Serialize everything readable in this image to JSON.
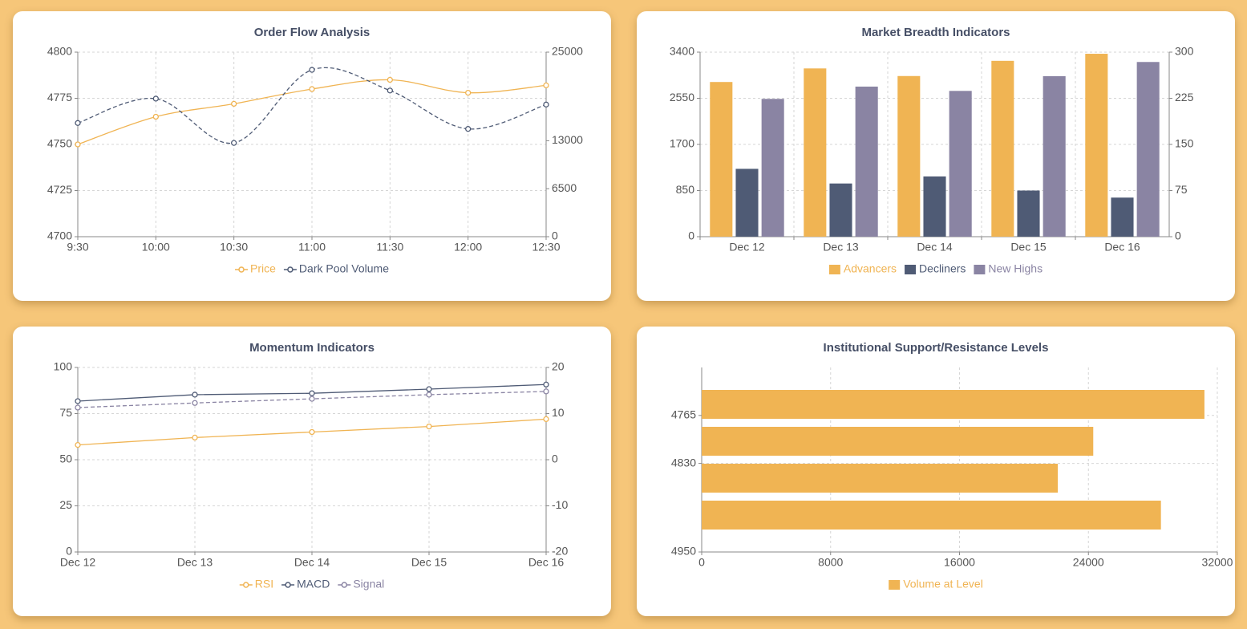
{
  "chart_data": [
    {
      "type": "line",
      "title": "Order Flow Analysis",
      "categories": [
        "9:30",
        "10:00",
        "10:30",
        "11:00",
        "11:30",
        "12:00",
        "12:30"
      ],
      "series": [
        {
          "name": "Price",
          "color": "#f0b453",
          "values": [
            4750,
            4765,
            4772,
            4780,
            4785,
            4778,
            4782
          ],
          "smooth": true
        },
        {
          "name": "Dark Pool Volume",
          "color": "#4f5b75",
          "values": [
            15400,
            18700,
            12700,
            22600,
            19800,
            14600,
            17900
          ],
          "axis": "y2",
          "smooth": true,
          "dashed": true
        }
      ],
      "ylim": [
        4700,
        4800
      ],
      "yticks": [
        4700,
        4725,
        4750,
        4775,
        4800
      ],
      "y2lim": [
        0,
        25000
      ],
      "y2ticks": [
        0,
        6500,
        13000,
        25000
      ],
      "grid": true,
      "legend": "bottom"
    },
    {
      "type": "bar",
      "title": "Market Breadth Indicators",
      "categories": [
        "Dec 12",
        "Dec 13",
        "Dec 14",
        "Dec 15",
        "Dec 16"
      ],
      "series": [
        {
          "name": "Advancers",
          "color": "#f0b453",
          "values": [
            2850,
            3100,
            2960,
            3240,
            3370
          ]
        },
        {
          "name": "Decliners",
          "color": "#4f5b75",
          "values": [
            1250,
            980,
            1110,
            850,
            720
          ]
        },
        {
          "name": "New Highs",
          "color": "#8a84a3",
          "values": [
            224,
            244,
            237,
            261,
            284
          ],
          "axis": "y2"
        }
      ],
      "ylim": [
        0,
        3400
      ],
      "yticks": [
        0,
        850,
        1700,
        2550,
        3400
      ],
      "y2lim": [
        0,
        300
      ],
      "y2ticks": [
        0,
        75,
        150,
        225,
        300
      ],
      "grid": true,
      "legend": "bottom"
    },
    {
      "type": "line",
      "title": "Momentum Indicators",
      "categories": [
        "Dec 12",
        "Dec 13",
        "Dec 14",
        "Dec 15",
        "Dec 16"
      ],
      "series": [
        {
          "name": "RSI",
          "color": "#f0b453",
          "values": [
            58,
            62,
            65,
            68,
            72
          ]
        },
        {
          "name": "MACD",
          "color": "#4f5b75",
          "values": [
            12.7,
            14.1,
            14.4,
            15.3,
            16.3
          ],
          "axis": "y2"
        },
        {
          "name": "Signal",
          "color": "#8a84a3",
          "values": [
            11.3,
            12.3,
            13.2,
            14.1,
            14.8
          ],
          "axis": "y2",
          "dashed": true
        }
      ],
      "ylim": [
        0,
        100
      ],
      "yticks": [
        0,
        25,
        50,
        75,
        100
      ],
      "y2lim": [
        -20,
        20
      ],
      "y2ticks": [
        -20,
        -10,
        0,
        10,
        20
      ],
      "grid": true,
      "legend": "bottom"
    },
    {
      "type": "hbar",
      "title": "Institutional Support/Resistance Levels",
      "y": [
        4750,
        4800,
        4850,
        4900
      ],
      "series": [
        {
          "name": "Volume at Level",
          "color": "#f0b453",
          "values": [
            31200,
            24300,
            22100,
            28500
          ]
        }
      ],
      "xlim": [
        0,
        32000
      ],
      "xticks": [
        0,
        8000,
        16000,
        24000,
        32000
      ],
      "ylim": [
        4700,
        4950
      ],
      "yticks": [
        4765,
        4830,
        4950
      ],
      "y_inverse": true,
      "grid": true,
      "legend": "bottom"
    }
  ]
}
